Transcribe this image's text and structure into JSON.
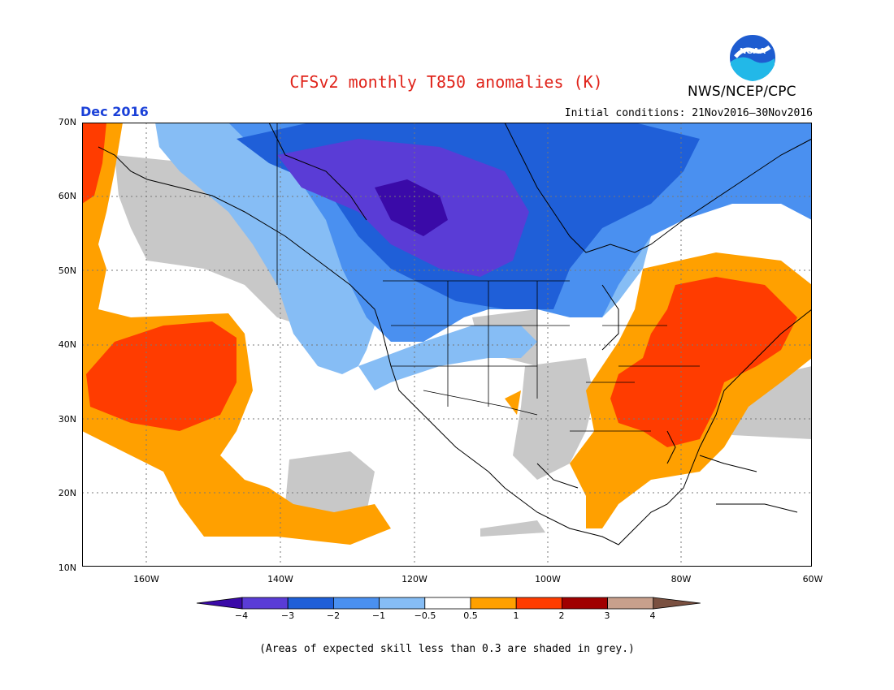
{
  "header": {
    "title": "CFSv2 monthly T850 anomalies (K)",
    "agency": "NWS/NCEP/CPC",
    "period": "Dec 2016",
    "initial_conditions": "Initial conditions: 21Nov2016–30Nov2016",
    "logo_icon": "noaa-logo-icon"
  },
  "axes": {
    "lat_labels": [
      "70N",
      "60N",
      "50N",
      "40N",
      "30N",
      "20N",
      "10N"
    ],
    "lon_labels": [
      "160W",
      "140W",
      "120W",
      "100W",
      "80W",
      "60W"
    ]
  },
  "colorbar": {
    "labels": [
      "−4",
      "−3",
      "−2",
      "−1",
      "−0.5",
      "0.5",
      "1",
      "2",
      "3",
      "4"
    ],
    "colors": [
      "#3a0aa8",
      "#5a3cd6",
      "#1f5fd8",
      "#4a90f0",
      "#86bdf5",
      "#ffffff",
      "#ffa000",
      "#ff3c00",
      "#a00000",
      "#c8a08c",
      "#7a5040"
    ]
  },
  "legend_colors": {
    "low_skill_grey": "#c8c8c8",
    "coast": "#000000",
    "grid": "#777777"
  },
  "footnote": "(Areas of expected skill less than 0.3 are shaded in grey.)"
}
